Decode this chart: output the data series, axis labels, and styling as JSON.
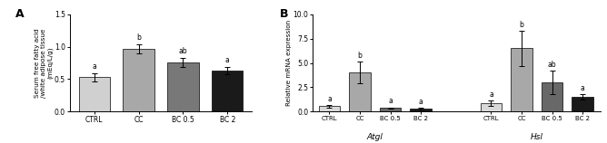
{
  "panel_A": {
    "categories": [
      "CTRL",
      "CC",
      "BC 0.5",
      "BC 2"
    ],
    "values": [
      0.53,
      0.97,
      0.76,
      0.63
    ],
    "errors": [
      0.06,
      0.07,
      0.07,
      0.06
    ],
    "letters": [
      "a",
      "b",
      "ab",
      "a"
    ],
    "colors": [
      "#d0d0d0",
      "#a8a8a8",
      "#787878",
      "#1a1a1a"
    ],
    "ylabel": "Serum free fatty acid\n/white adipose tissue\n(mEq/L/g)",
    "ylim": [
      0,
      1.5
    ],
    "yticks": [
      0.0,
      0.5,
      1.0,
      1.5
    ]
  },
  "panel_B": {
    "categories": [
      "CTRL",
      "CC",
      "BC 0.5",
      "BC 2"
    ],
    "values_atgl": [
      0.55,
      4.0,
      0.35,
      0.28
    ],
    "errors_atgl": [
      0.12,
      1.1,
      0.09,
      0.07
    ],
    "letters_atgl": [
      "a",
      "b",
      "a",
      "a"
    ],
    "values_hsl": [
      0.85,
      6.5,
      3.0,
      1.5
    ],
    "errors_hsl": [
      0.25,
      1.8,
      1.2,
      0.3
    ],
    "letters_hsl": [
      "a",
      "b",
      "ab",
      "a"
    ],
    "colors": [
      "#d8d8d8",
      "#a8a8a8",
      "#686868",
      "#1a1a1a"
    ],
    "ylabel": "Relative mRNA expression",
    "ylim": [
      0,
      10.0
    ],
    "yticks": [
      0.0,
      2.5,
      5.0,
      7.5,
      10.0
    ],
    "group_labels": [
      "Atgl",
      "Hsl"
    ]
  }
}
